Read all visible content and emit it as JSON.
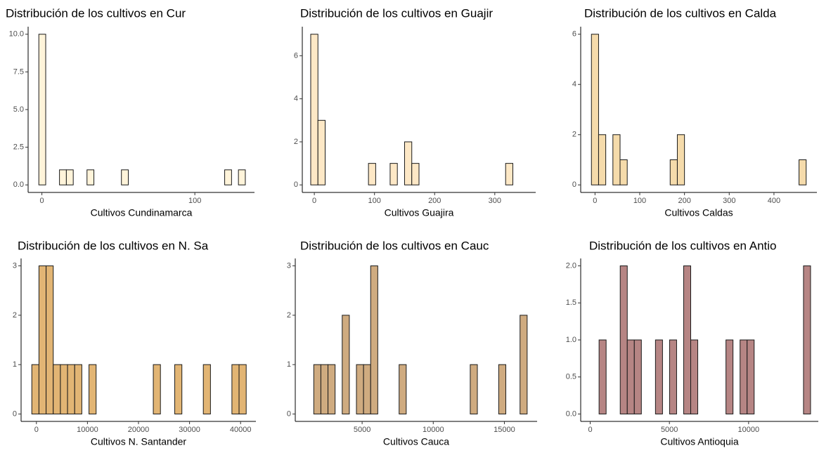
{
  "chart_data": [
    {
      "type": "histogram",
      "title": "Distribución de los cultivos en Cur",
      "xlabel": "Cultivos Cundinamarca",
      "color": "#fff4da",
      "bins": [
        -2,
        2.5,
        7,
        11.5,
        16,
        20.5,
        25,
        29.5,
        34,
        38.5,
        43,
        47.5,
        52,
        56.5,
        61,
        65.5,
        70,
        74.5,
        79,
        83.5,
        88,
        92.5,
        97,
        101.5,
        106,
        110.5,
        115,
        119.5,
        124,
        128.5,
        133
      ],
      "counts": [
        10,
        0,
        0,
        1,
        1,
        0,
        0,
        1,
        0,
        0,
        0,
        0,
        1,
        0,
        0,
        0,
        0,
        0,
        0,
        0,
        0,
        0,
        0,
        0,
        0,
        0,
        0,
        1,
        0,
        1
      ],
      "xlim": [
        -9,
        139
      ],
      "xticks": [
        0,
        100
      ],
      "ylim": [
        -0.5,
        10.5
      ],
      "yticks": [
        {
          "value": 0,
          "label": "0.0"
        },
        2.5,
        {
          "value": 5,
          "label": "5.0"
        },
        7.5,
        {
          "value": 10,
          "label": "10.0"
        }
      ]
    },
    {
      "type": "histogram",
      "title": "Distribución de los cultivos en Guajir",
      "xlabel": "Cultivos Guajira",
      "color": "#fde8c6",
      "bins": [
        -6,
        6,
        18,
        30,
        42,
        54,
        66,
        78,
        90,
        102,
        114,
        126,
        138,
        150,
        162,
        174,
        186,
        198,
        210,
        222,
        234,
        246,
        258,
        270,
        282,
        294,
        306,
        318,
        330,
        342,
        354
      ],
      "counts": [
        7,
        3,
        0,
        0,
        0,
        0,
        0,
        0,
        1,
        0,
        0,
        1,
        0,
        2,
        1,
        0,
        0,
        0,
        0,
        0,
        0,
        0,
        0,
        0,
        0,
        0,
        0,
        1,
        0,
        0
      ],
      "xlim": [
        -20,
        368
      ],
      "xticks": [
        0,
        100,
        200,
        300
      ],
      "ylim": [
        -0.35,
        7.35
      ],
      "yticks": [
        0,
        2,
        4,
        6
      ]
    },
    {
      "type": "histogram",
      "title": "Distribución de los cultivos en Calda",
      "xlabel": "Cultivos Caldas",
      "color": "#f5dbab",
      "bins": [
        -8,
        8,
        24,
        40,
        56,
        72,
        88,
        104,
        120,
        136,
        152,
        168,
        184,
        200,
        216,
        232,
        248,
        264,
        280,
        296,
        312,
        328,
        344,
        360,
        376,
        392,
        408,
        424,
        440,
        456,
        472
      ],
      "counts": [
        6,
        2,
        0,
        2,
        1,
        0,
        0,
        0,
        0,
        0,
        0,
        1,
        2,
        0,
        0,
        0,
        0,
        0,
        0,
        0,
        0,
        0,
        0,
        0,
        0,
        0,
        0,
        0,
        0,
        1
      ],
      "xlim": [
        -32,
        496
      ],
      "xticks": [
        0,
        100,
        200,
        300,
        400
      ],
      "ylim": [
        -0.3,
        6.3
      ],
      "yticks": [
        0,
        2,
        4,
        6
      ]
    },
    {
      "type": "histogram",
      "title": "Distribución de los cultivos en N. Sa",
      "xlabel": "Cultivos N. Santander",
      "color": "#e2b574",
      "bins": [
        -900,
        500,
        1900,
        3300,
        4700,
        6100,
        7500,
        8900,
        10300,
        11700,
        13100,
        14500,
        15900,
        17300,
        18700,
        20100,
        21500,
        22900,
        24300,
        25700,
        27100,
        28500,
        29900,
        31300,
        32700,
        34100,
        35500,
        36900,
        38300,
        39700,
        41100
      ],
      "counts": [
        1,
        3,
        3,
        1,
        1,
        1,
        1,
        0,
        1,
        0,
        0,
        0,
        0,
        0,
        0,
        0,
        0,
        1,
        0,
        0,
        1,
        0,
        0,
        0,
        1,
        0,
        0,
        0,
        1,
        1
      ],
      "xlim": [
        -3000,
        43000
      ],
      "xticks": [
        0,
        10000,
        20000,
        30000,
        40000
      ],
      "ylim": [
        -0.15,
        3.15
      ],
      "yticks": [
        0,
        1,
        2,
        3
      ]
    },
    {
      "type": "histogram",
      "title": "Distribución de los cultivos en Cauc",
      "xlabel": "Cultivos Cauca",
      "color": "#cfab80",
      "bins": [
        1600,
        2100,
        2600,
        3100,
        3600,
        4100,
        4600,
        5100,
        5600,
        6100,
        6600,
        7100,
        7600,
        8100,
        8600,
        9100,
        9600,
        10100,
        10600,
        11100,
        11600,
        12100,
        12600,
        13100,
        13600,
        14100,
        14600,
        15100,
        15600,
        16100,
        16600
      ],
      "counts": [
        1,
        1,
        1,
        0,
        2,
        0,
        1,
        1,
        3,
        0,
        0,
        0,
        1,
        0,
        0,
        0,
        0,
        0,
        0,
        0,
        0,
        0,
        1,
        0,
        0,
        0,
        1,
        0,
        0,
        2
      ],
      "xlim": [
        300,
        17300
      ],
      "xticks": [
        5000,
        10000,
        15000
      ],
      "ylim": [
        -0.15,
        3.15
      ],
      "yticks": [
        0,
        1,
        2,
        3
      ]
    },
    {
      "type": "histogram",
      "title": "Distribución de los cultivos en Antio",
      "xlabel": "Cultivos Antioquia",
      "color": "#b68584",
      "bins": [
        560,
        1005,
        1450,
        1895,
        2340,
        2785,
        3230,
        3675,
        4120,
        4565,
        5010,
        5455,
        5900,
        6345,
        6790,
        7235,
        7680,
        8125,
        8570,
        9015,
        9460,
        9905,
        10350,
        10795,
        11240,
        11685,
        12130,
        12575,
        13020,
        13465,
        13910
      ],
      "counts": [
        1,
        0,
        0,
        2,
        1,
        1,
        0,
        0,
        1,
        0,
        1,
        0,
        2,
        1,
        0,
        0,
        0,
        0,
        1,
        0,
        1,
        1,
        0,
        0,
        0,
        0,
        0,
        0,
        0,
        2
      ],
      "xlim": [
        -600,
        14400
      ],
      "xticks": [
        0,
        5000,
        10000
      ],
      "ylim": [
        -0.1,
        2.1
      ],
      "yticks": [
        {
          "value": 0,
          "label": "0.0"
        },
        0.5,
        {
          "value": 1,
          "label": "1.0"
        },
        1.5,
        {
          "value": 2,
          "label": "2.0"
        }
      ]
    }
  ]
}
